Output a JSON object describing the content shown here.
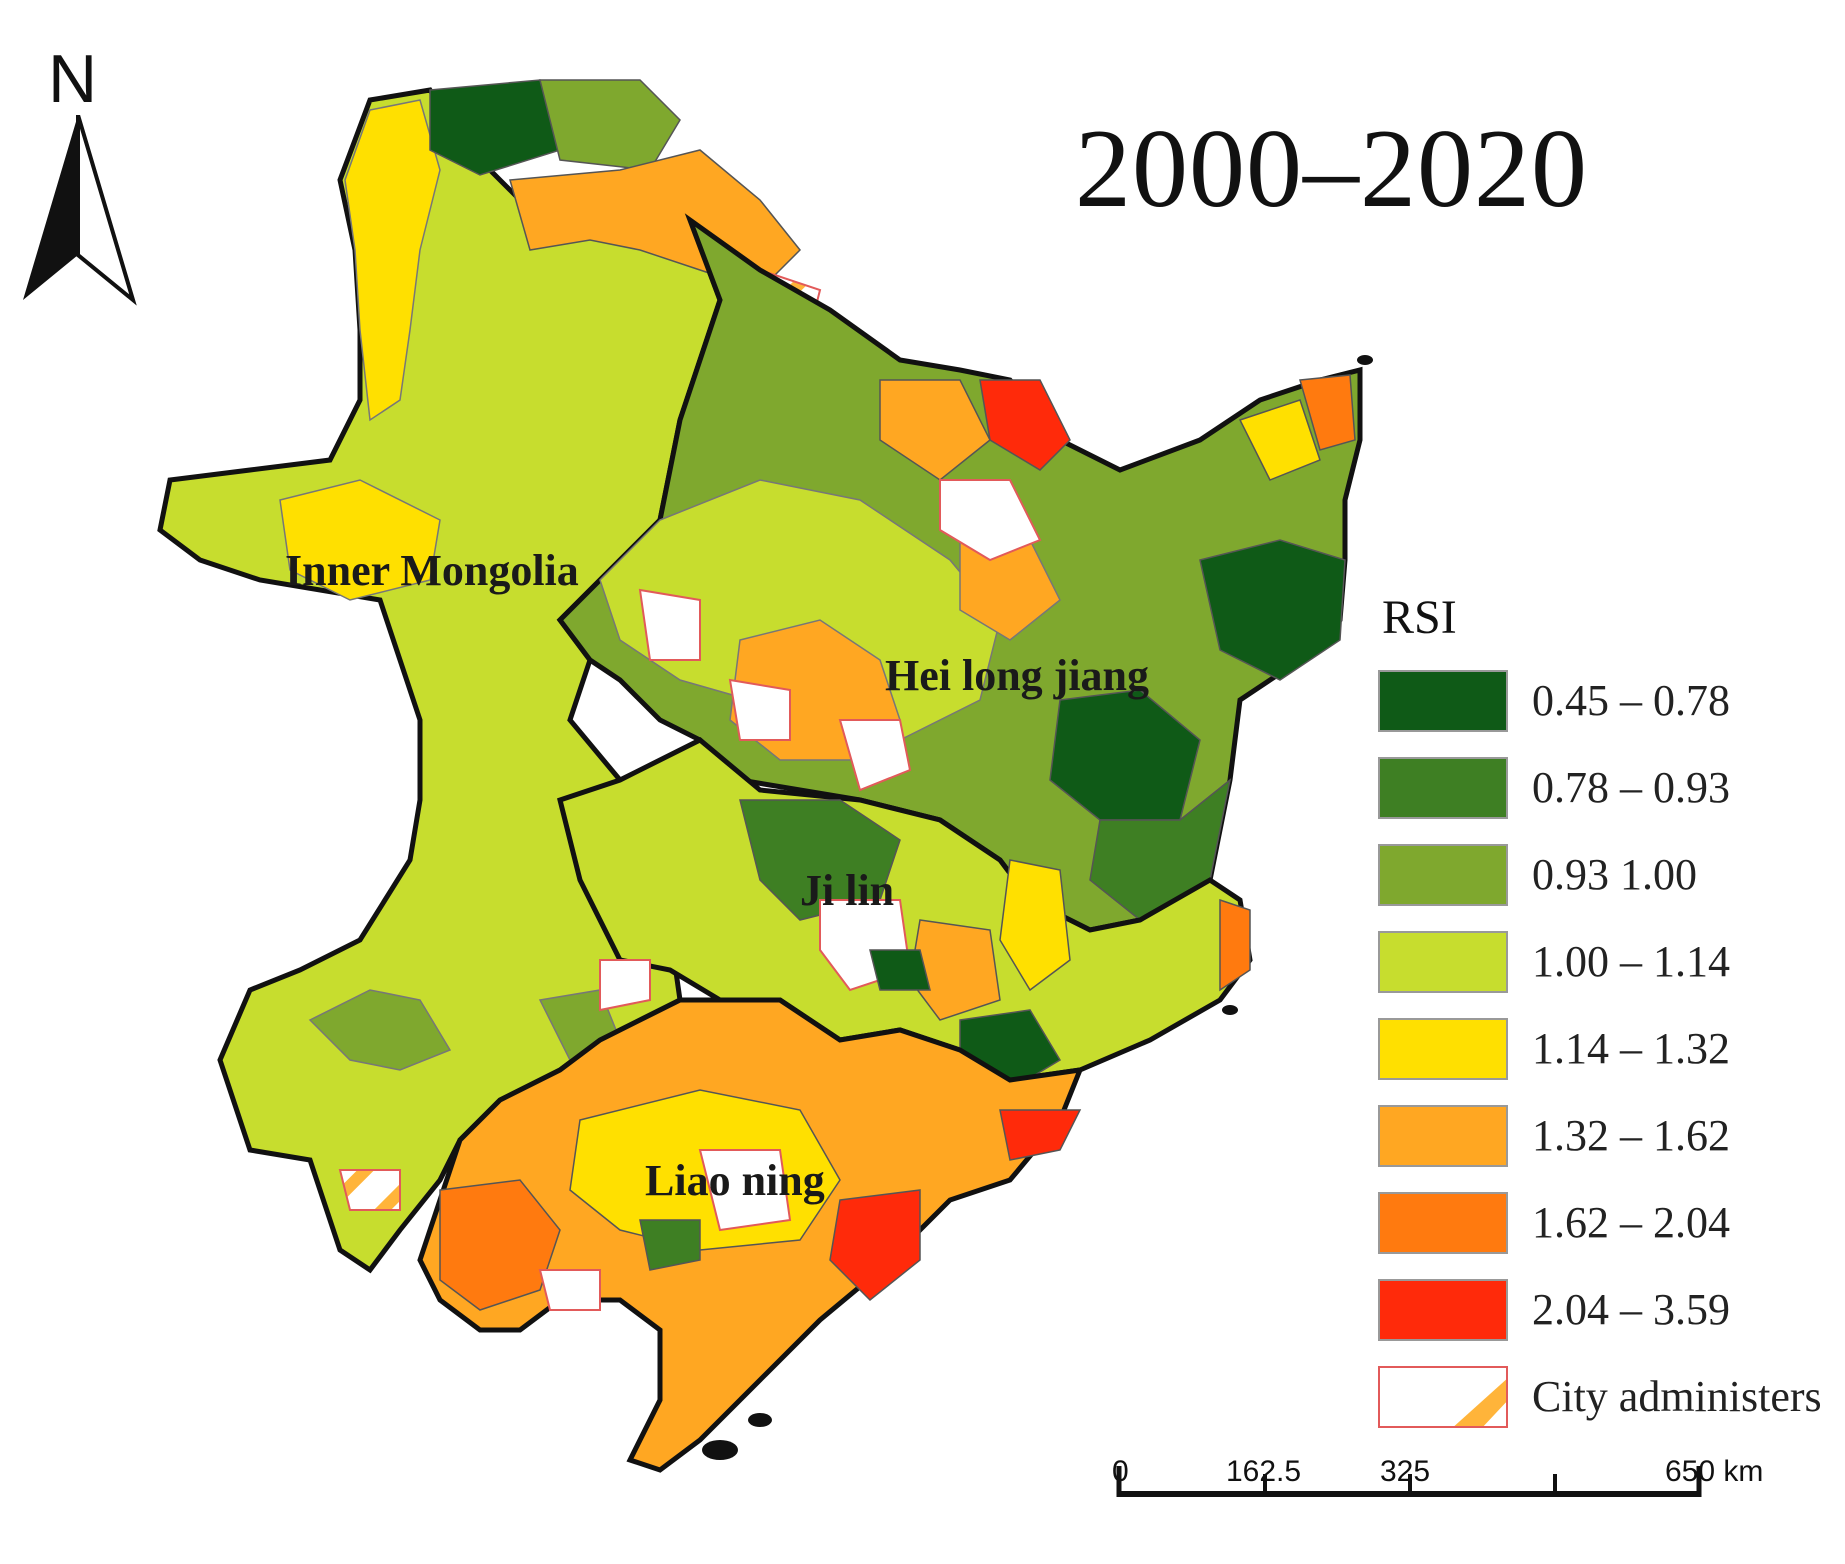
{
  "title": "2000–2020",
  "north_label": "N",
  "regions": {
    "inner_mongolia": "Inner Mongolia",
    "heilongjiang": "Hei long jiang",
    "jilin": "Ji lin",
    "liaoning": "Liao ning"
  },
  "legend": {
    "title": "RSI",
    "classes": [
      {
        "label": "0.45 – 0.78",
        "color": "#0f5a17"
      },
      {
        "label": "0.78 – 0.93",
        "color": "#3e7f23"
      },
      {
        "label": "0.93   1.00",
        "color": "#7fa82e"
      },
      {
        "label": "1.00 – 1.14",
        "color": "#c7dd2e"
      },
      {
        "label": "1.14 – 1.32",
        "color": "#ffe000"
      },
      {
        "label": "1.32 – 1.62",
        "color": "#ffa722"
      },
      {
        "label": "1.62 – 2.04",
        "color": "#ff7a0f"
      },
      {
        "label": "2.04 – 3.59",
        "color": "#ff2a0a"
      }
    ],
    "city_label": "City administers"
  },
  "scale": {
    "ticks": [
      "0",
      "162.5",
      "325",
      "650 km"
    ]
  }
}
